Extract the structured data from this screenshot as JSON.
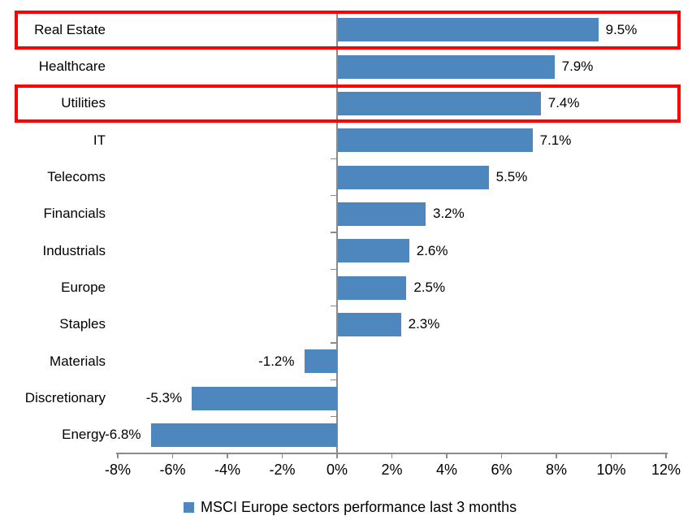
{
  "chart_data": {
    "type": "bar",
    "orientation": "horizontal",
    "title": "",
    "xlabel": "",
    "ylabel": "",
    "categories": [
      "Real Estate",
      "Healthcare",
      "Utilities",
      "IT",
      "Telecoms",
      "Financials",
      "Industrials",
      "Europe",
      "Staples",
      "Materials",
      "Discretionary",
      "Energy"
    ],
    "values": [
      9.5,
      7.9,
      7.4,
      7.1,
      5.5,
      3.2,
      2.6,
      2.5,
      2.3,
      -1.2,
      -5.3,
      -6.8
    ],
    "data_labels": [
      "9.5%",
      "7.9%",
      "7.4%",
      "7.1%",
      "5.5%",
      "3.2%",
      "2.6%",
      "2.5%",
      "2.3%",
      "-1.2%",
      "-5.3%",
      "-6.8%"
    ],
    "x_ticks": [
      {
        "label": "-8%",
        "value": -8
      },
      {
        "label": "-6%",
        "value": -6
      },
      {
        "label": "-4%",
        "value": -4
      },
      {
        "label": "-2%",
        "value": -2
      },
      {
        "label": "0%",
        "value": 0
      },
      {
        "label": "2%",
        "value": 2
      },
      {
        "label": "4%",
        "value": 4
      },
      {
        "label": "6%",
        "value": 6
      },
      {
        "label": "8%",
        "value": 8
      },
      {
        "label": "10%",
        "value": 10
      },
      {
        "label": "12%",
        "value": 12
      }
    ],
    "xlim": [
      -8,
      12
    ],
    "grid": false,
    "legend": "MSCI Europe sectors performance last 3 months",
    "legend_position": "bottom-center",
    "bar_color": "#4E86BE",
    "axis_color": "#8A8A8A",
    "highlight_color": "#FF0000",
    "highlighted_categories": [
      "Real Estate",
      "Utilities"
    ]
  }
}
